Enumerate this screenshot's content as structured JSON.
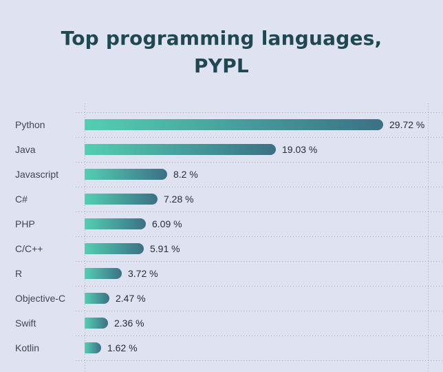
{
  "title": {
    "line1": "Top programming languages,",
    "line2": "PYPL"
  },
  "chart_data": {
    "type": "bar",
    "orientation": "horizontal",
    "title": "Top programming languages, PYPL",
    "categories": [
      "Python",
      "Java",
      "Javascript",
      "C#",
      "PHP",
      "C/C++",
      "R",
      "Objective-C",
      "Swift",
      "Kotlin"
    ],
    "values": [
      29.72,
      19.03,
      8.2,
      7.28,
      6.09,
      5.91,
      3.72,
      2.47,
      2.36,
      1.62
    ],
    "value_labels": [
      "29.72 %",
      "19.03 %",
      "8.2 %",
      "7.28 %",
      "6.09 %",
      "5.91 %",
      "3.72 %",
      "2.47 %",
      "2.36 %",
      "1.62 %"
    ],
    "xlabel": "",
    "ylabel": "",
    "xlim": [
      0,
      30.5
    ],
    "grid": "dotted horizontal row separators plus left and right dotted vertical axis lines",
    "legend": "none",
    "colors": {
      "background": "#dee2f1",
      "bar_gradient_start": "#53cfb2",
      "bar_gradient_end": "#3a7185",
      "title_text": "#1f4853",
      "category_text": "#3f4654",
      "value_text": "#272d39",
      "gridline": "#a8acbd"
    }
  }
}
